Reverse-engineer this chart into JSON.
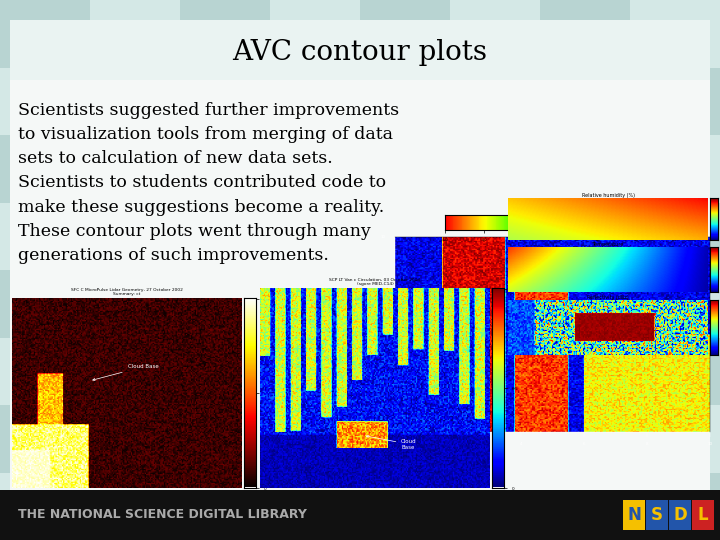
{
  "title": "AVC contour plots",
  "title_fontsize": 20,
  "body_text": "Scientists suggested further improvements\nto visualization tools from merging of data\nsets to calculation of new data sets.\nScientists to students contributed code to\nmake these suggestions become a reality.\nThese contour plots went through many\ngenerations of such improvements.",
  "body_fontsize": 12.5,
  "bg_color": "#cce0de",
  "checker_light": "#d4e8e6",
  "checker_dark": "#b8d4d2",
  "white_bg": "#f0f4f4",
  "footer_bg_color": "#111111",
  "footer_text": "THE NATIONAL SCIENCE DIGITAL LIBRARY",
  "footer_fontsize": 9,
  "nsdl_N_bg": "#f5c000",
  "nsdl_N_fg": "#2255aa",
  "nsdl_S_bg": "#2255aa",
  "nsdl_S_fg": "#f5c000",
  "nsdl_D_bg": "#2255aa",
  "nsdl_D_fg": "#f5c000",
  "nsdl_L_bg": "#cc2222",
  "nsdl_L_fg": "#f5c000"
}
